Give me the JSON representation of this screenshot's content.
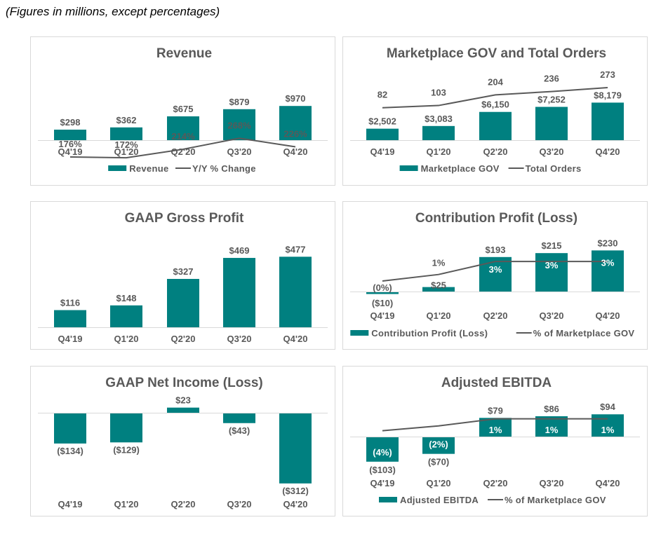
{
  "note": "(Figures in millions, except percentages)",
  "colors": {
    "bar": "#008080",
    "line": "#595959",
    "axis": "#d9d9d9",
    "text": "#595959"
  },
  "chart_data": [
    {
      "id": "revenue",
      "type": "bar",
      "title": "Revenue",
      "categories": [
        "Q4'19",
        "Q1'20",
        "Q2'20",
        "Q3'20",
        "Q4'20"
      ],
      "series": [
        {
          "name": "Revenue",
          "kind": "bar",
          "values": [
            298,
            362,
            675,
            879,
            970
          ],
          "labels": [
            "$298",
            "$362",
            "$675",
            "$879",
            "$970"
          ]
        },
        {
          "name": "Y/Y % Change",
          "kind": "line",
          "values": [
            176,
            172,
            214,
            268,
            226
          ],
          "labels": [
            "176%",
            "172%",
            "214%",
            "268%",
            "226%"
          ]
        }
      ],
      "legend": [
        "Revenue",
        "Y/Y % Change"
      ],
      "legend_position": "bottom",
      "grid": false
    },
    {
      "id": "gov",
      "type": "bar",
      "title": "Marketplace GOV and Total Orders",
      "categories": [
        "Q4'19",
        "Q1'20",
        "Q2'20",
        "Q3'20",
        "Q4'20"
      ],
      "series": [
        {
          "name": "Marketplace GOV",
          "kind": "bar",
          "values": [
            2502,
            3083,
            6150,
            7252,
            8179
          ],
          "labels": [
            "$2,502",
            "$3,083",
            "$6,150",
            "$7,252",
            "$8,179"
          ]
        },
        {
          "name": "Total Orders",
          "kind": "line",
          "values": [
            82,
            103,
            204,
            236,
            273
          ],
          "labels": [
            "82",
            "103",
            "204",
            "236",
            "273"
          ]
        }
      ],
      "legend": [
        "Marketplace GOV",
        "Total Orders"
      ],
      "legend_position": "bottom",
      "grid": false
    },
    {
      "id": "gross-profit",
      "type": "bar",
      "title": "GAAP Gross Profit",
      "categories": [
        "Q4'19",
        "Q1'20",
        "Q2'20",
        "Q3'20",
        "Q4'20"
      ],
      "series": [
        {
          "name": "GAAP Gross Profit",
          "kind": "bar",
          "values": [
            116,
            148,
            327,
            469,
            477
          ],
          "labels": [
            "$116",
            "$148",
            "$327",
            "$469",
            "$477"
          ]
        }
      ],
      "legend": [],
      "grid": false
    },
    {
      "id": "contribution",
      "type": "bar",
      "title": "Contribution Profit (Loss)",
      "categories": [
        "Q4'19",
        "Q1'20",
        "Q2'20",
        "Q3'20",
        "Q4'20"
      ],
      "series": [
        {
          "name": "Contribution Profit (Loss)",
          "kind": "bar",
          "values": [
            -10,
            25,
            193,
            215,
            230
          ],
          "labels": [
            "($10)",
            "$25",
            "$193",
            "$215",
            "$230"
          ]
        },
        {
          "name": "% of Marketplace GOV",
          "kind": "line",
          "values": [
            0,
            1,
            3,
            3,
            3
          ],
          "labels": [
            "(0%)",
            "1%",
            "3%",
            "3%",
            "3%"
          ]
        }
      ],
      "legend": [
        "Contribution Profit (Loss)",
        "% of Marketplace GOV"
      ],
      "legend_position": "bottom",
      "grid": false
    },
    {
      "id": "net-income",
      "type": "bar",
      "title": "GAAP Net Income (Loss)",
      "categories": [
        "Q4'19",
        "Q1'20",
        "Q2'20",
        "Q3'20",
        "Q4'20"
      ],
      "series": [
        {
          "name": "GAAP Net Income (Loss)",
          "kind": "bar",
          "values": [
            -134,
            -129,
            23,
            -43,
            -312
          ],
          "labels": [
            "($134)",
            "($129)",
            "$23",
            "($43)",
            "($312)"
          ]
        }
      ],
      "legend": [],
      "grid": false
    },
    {
      "id": "ebitda",
      "type": "bar",
      "title": "Adjusted EBITDA",
      "categories": [
        "Q4'19",
        "Q1'20",
        "Q2'20",
        "Q3'20",
        "Q4'20"
      ],
      "series": [
        {
          "name": "Adjusted EBITDA",
          "kind": "bar",
          "values": [
            -103,
            -70,
            79,
            86,
            94
          ],
          "labels": [
            "($103)",
            "($70)",
            "$79",
            "$86",
            "$94"
          ]
        },
        {
          "name": "% of Marketplace GOV",
          "kind": "line",
          "values": [
            -4,
            -2,
            1,
            1,
            1
          ],
          "labels": [
            "(4%)",
            "(2%)",
            "1%",
            "1%",
            "1%"
          ]
        }
      ],
      "legend": [
        "Adjusted EBITDA",
        "% of Marketplace GOV"
      ],
      "legend_position": "bottom",
      "grid": false
    }
  ]
}
